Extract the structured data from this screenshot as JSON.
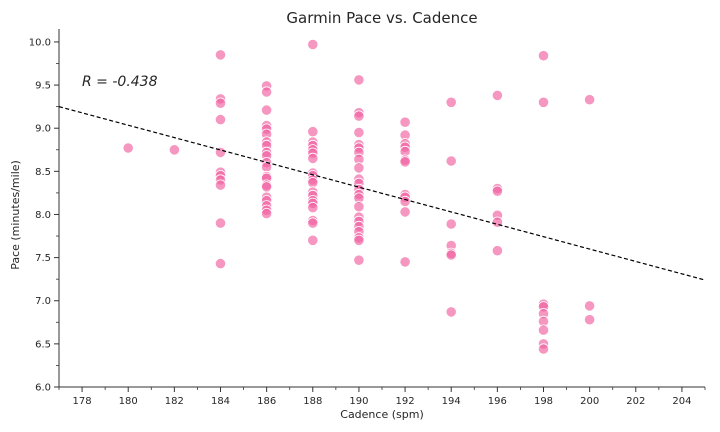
{
  "chart_data": {
    "type": "scatter",
    "title": "Garmin Pace vs. Cadence",
    "xlabel": "Cadence (spm)",
    "ylabel": "Pace (minutes/mile)",
    "xlim": [
      177,
      205
    ],
    "ylim": [
      6.0,
      10.15
    ],
    "xticks": [
      "178",
      "180",
      "182",
      "184",
      "186",
      "188",
      "190",
      "192",
      "194",
      "196",
      "198",
      "200",
      "202",
      "204"
    ],
    "yticks": [
      "6.0",
      "6.5",
      "7.0",
      "7.5",
      "8.0",
      "8.5",
      "9.0",
      "9.5",
      "10.0"
    ],
    "annotation": "R = -0.438",
    "point_color": "#f0609f",
    "trend_color": "#000000",
    "grid": false,
    "trendline": {
      "x": [
        177,
        205
      ],
      "y": [
        9.25,
        7.24
      ]
    },
    "points": [
      [
        180,
        8.77
      ],
      [
        182,
        8.75
      ],
      [
        184,
        9.85
      ],
      [
        184,
        9.34
      ],
      [
        184,
        9.29
      ],
      [
        184,
        9.1
      ],
      [
        184,
        8.72
      ],
      [
        184,
        8.49
      ],
      [
        184,
        8.45
      ],
      [
        184,
        8.4
      ],
      [
        184,
        8.34
      ],
      [
        184,
        7.9
      ],
      [
        184,
        7.43
      ],
      [
        186,
        9.49
      ],
      [
        186,
        9.42
      ],
      [
        186,
        9.21
      ],
      [
        186,
        9.03
      ],
      [
        186,
        8.99
      ],
      [
        186,
        8.93
      ],
      [
        186,
        8.84
      ],
      [
        186,
        8.8
      ],
      [
        186,
        8.72
      ],
      [
        186,
        8.68
      ],
      [
        186,
        8.6
      ],
      [
        186,
        8.55
      ],
      [
        186,
        8.44
      ],
      [
        186,
        8.42
      ],
      [
        186,
        8.34
      ],
      [
        186,
        8.32
      ],
      [
        186,
        8.2
      ],
      [
        186,
        8.16
      ],
      [
        186,
        8.1
      ],
      [
        186,
        8.05
      ],
      [
        186,
        8.01
      ],
      [
        188,
        9.97
      ],
      [
        188,
        8.96
      ],
      [
        188,
        8.84
      ],
      [
        188,
        8.8
      ],
      [
        188,
        8.75
      ],
      [
        188,
        8.71
      ],
      [
        188,
        8.65
      ],
      [
        188,
        8.48
      ],
      [
        188,
        8.45
      ],
      [
        188,
        8.4
      ],
      [
        188,
        8.37
      ],
      [
        188,
        8.26
      ],
      [
        188,
        8.22
      ],
      [
        188,
        8.16
      ],
      [
        188,
        8.13
      ],
      [
        188,
        8.08
      ],
      [
        188,
        7.93
      ],
      [
        188,
        7.9
      ],
      [
        188,
        7.7
      ],
      [
        190,
        9.56
      ],
      [
        190,
        9.18
      ],
      [
        190,
        9.14
      ],
      [
        190,
        8.95
      ],
      [
        190,
        8.81
      ],
      [
        190,
        8.77
      ],
      [
        190,
        8.72
      ],
      [
        190,
        8.64
      ],
      [
        190,
        8.54
      ],
      [
        190,
        8.41
      ],
      [
        190,
        8.36
      ],
      [
        190,
        8.29
      ],
      [
        190,
        8.23
      ],
      [
        190,
        8.19
      ],
      [
        190,
        8.09
      ],
      [
        190,
        7.97
      ],
      [
        190,
        7.92
      ],
      [
        190,
        7.86
      ],
      [
        190,
        7.8
      ],
      [
        190,
        7.73
      ],
      [
        190,
        7.7
      ],
      [
        190,
        7.47
      ],
      [
        192,
        9.07
      ],
      [
        192,
        8.92
      ],
      [
        192,
        8.82
      ],
      [
        192,
        8.78
      ],
      [
        192,
        8.73
      ],
      [
        192,
        8.63
      ],
      [
        192,
        8.61
      ],
      [
        192,
        8.23
      ],
      [
        192,
        8.2
      ],
      [
        192,
        8.15
      ],
      [
        192,
        8.03
      ],
      [
        192,
        7.45
      ],
      [
        194,
        9.3
      ],
      [
        194,
        8.62
      ],
      [
        194,
        7.89
      ],
      [
        194,
        7.64
      ],
      [
        194,
        7.55
      ],
      [
        194,
        7.53
      ],
      [
        194,
        6.87
      ],
      [
        196,
        9.38
      ],
      [
        196,
        8.3
      ],
      [
        196,
        8.27
      ],
      [
        196,
        7.99
      ],
      [
        196,
        7.91
      ],
      [
        196,
        7.58
      ],
      [
        198,
        9.84
      ],
      [
        198,
        9.3
      ],
      [
        198,
        6.96
      ],
      [
        198,
        6.93
      ],
      [
        198,
        6.85
      ],
      [
        198,
        6.76
      ],
      [
        198,
        6.66
      ],
      [
        198,
        6.5
      ],
      [
        198,
        6.44
      ],
      [
        200,
        9.33
      ],
      [
        200,
        6.94
      ],
      [
        200,
        6.78
      ]
    ]
  }
}
